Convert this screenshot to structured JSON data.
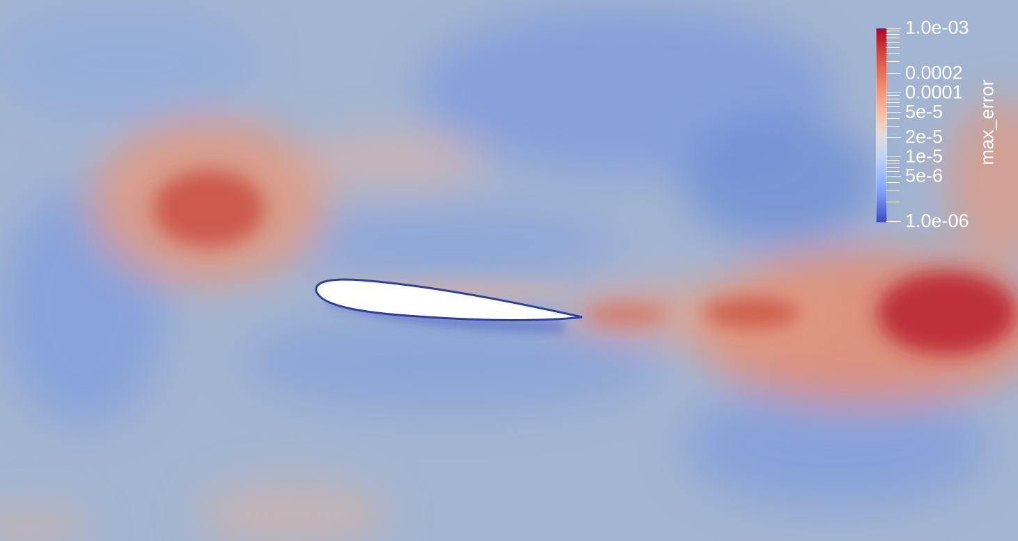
{
  "scene": {
    "field_name": "max_error",
    "body": "airfoil"
  },
  "colorbar": {
    "title": "max_error",
    "colormap": "cool-to-warm",
    "scale": "log",
    "range": [
      1e-06,
      0.001
    ],
    "labels": [
      {
        "value": 0.001,
        "text": "1.0e-03"
      },
      {
        "value": 0.0002,
        "text": "0.0002"
      },
      {
        "value": 0.0001,
        "text": "0.0001"
      },
      {
        "value": 5e-05,
        "text": "5e-5"
      },
      {
        "value": 2e-05,
        "text": "2e-5"
      },
      {
        "value": 1e-05,
        "text": "1e-5"
      },
      {
        "value": 5e-06,
        "text": "5e-6"
      },
      {
        "value": 1e-06,
        "text": "1.0e-06"
      }
    ],
    "minor_ticks": [
      0.0009,
      0.0008,
      0.0007,
      0.0006,
      0.0005,
      0.0004,
      0.0003,
      9e-05,
      8e-05,
      7e-05,
      6e-05,
      4e-05,
      3e-05,
      9e-06,
      8e-06,
      7e-06,
      6e-06,
      4e-06,
      3e-06,
      2e-06
    ]
  },
  "colors": {
    "background": "#9fb2d0",
    "airfoil_fill": "#ffffff",
    "airfoil_edge": "#2c3fa8",
    "high_error": "#b40426",
    "low_error": "#3b4cc0",
    "label_text": "#ffffff"
  }
}
